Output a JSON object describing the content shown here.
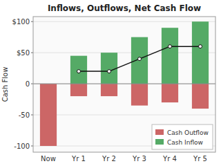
{
  "chart_data": {
    "type": "bar",
    "title": "Inflows, Outflows, Net Cash Flow",
    "y_label": "Cash Flow",
    "categories": [
      "Now",
      "Yr 1",
      "Yr 2",
      "Yr 3",
      "Yr 4",
      "Yr 5"
    ],
    "series": [
      {
        "name": "Cash Outflow",
        "type": "bar",
        "color": "#cc6666",
        "values": [
          -100,
          -20,
          -20,
          -35,
          -30,
          -40
        ]
      },
      {
        "name": "Cash Inflow",
        "type": "bar",
        "color": "#55aa66",
        "values": [
          0,
          45,
          50,
          75,
          90,
          100
        ]
      },
      {
        "type": "line",
        "color": "#111111",
        "marker": "circle",
        "values": [
          null,
          20,
          20,
          40,
          60,
          60
        ]
      }
    ],
    "stacked": true,
    "ylim": [
      -110,
      108
    ],
    "yticks": [
      -100,
      -50,
      0,
      {
        "value": 50,
        "label": "$50"
      },
      {
        "value": 100,
        "label": "$100"
      }
    ],
    "grid": true,
    "legend": "lower right"
  }
}
